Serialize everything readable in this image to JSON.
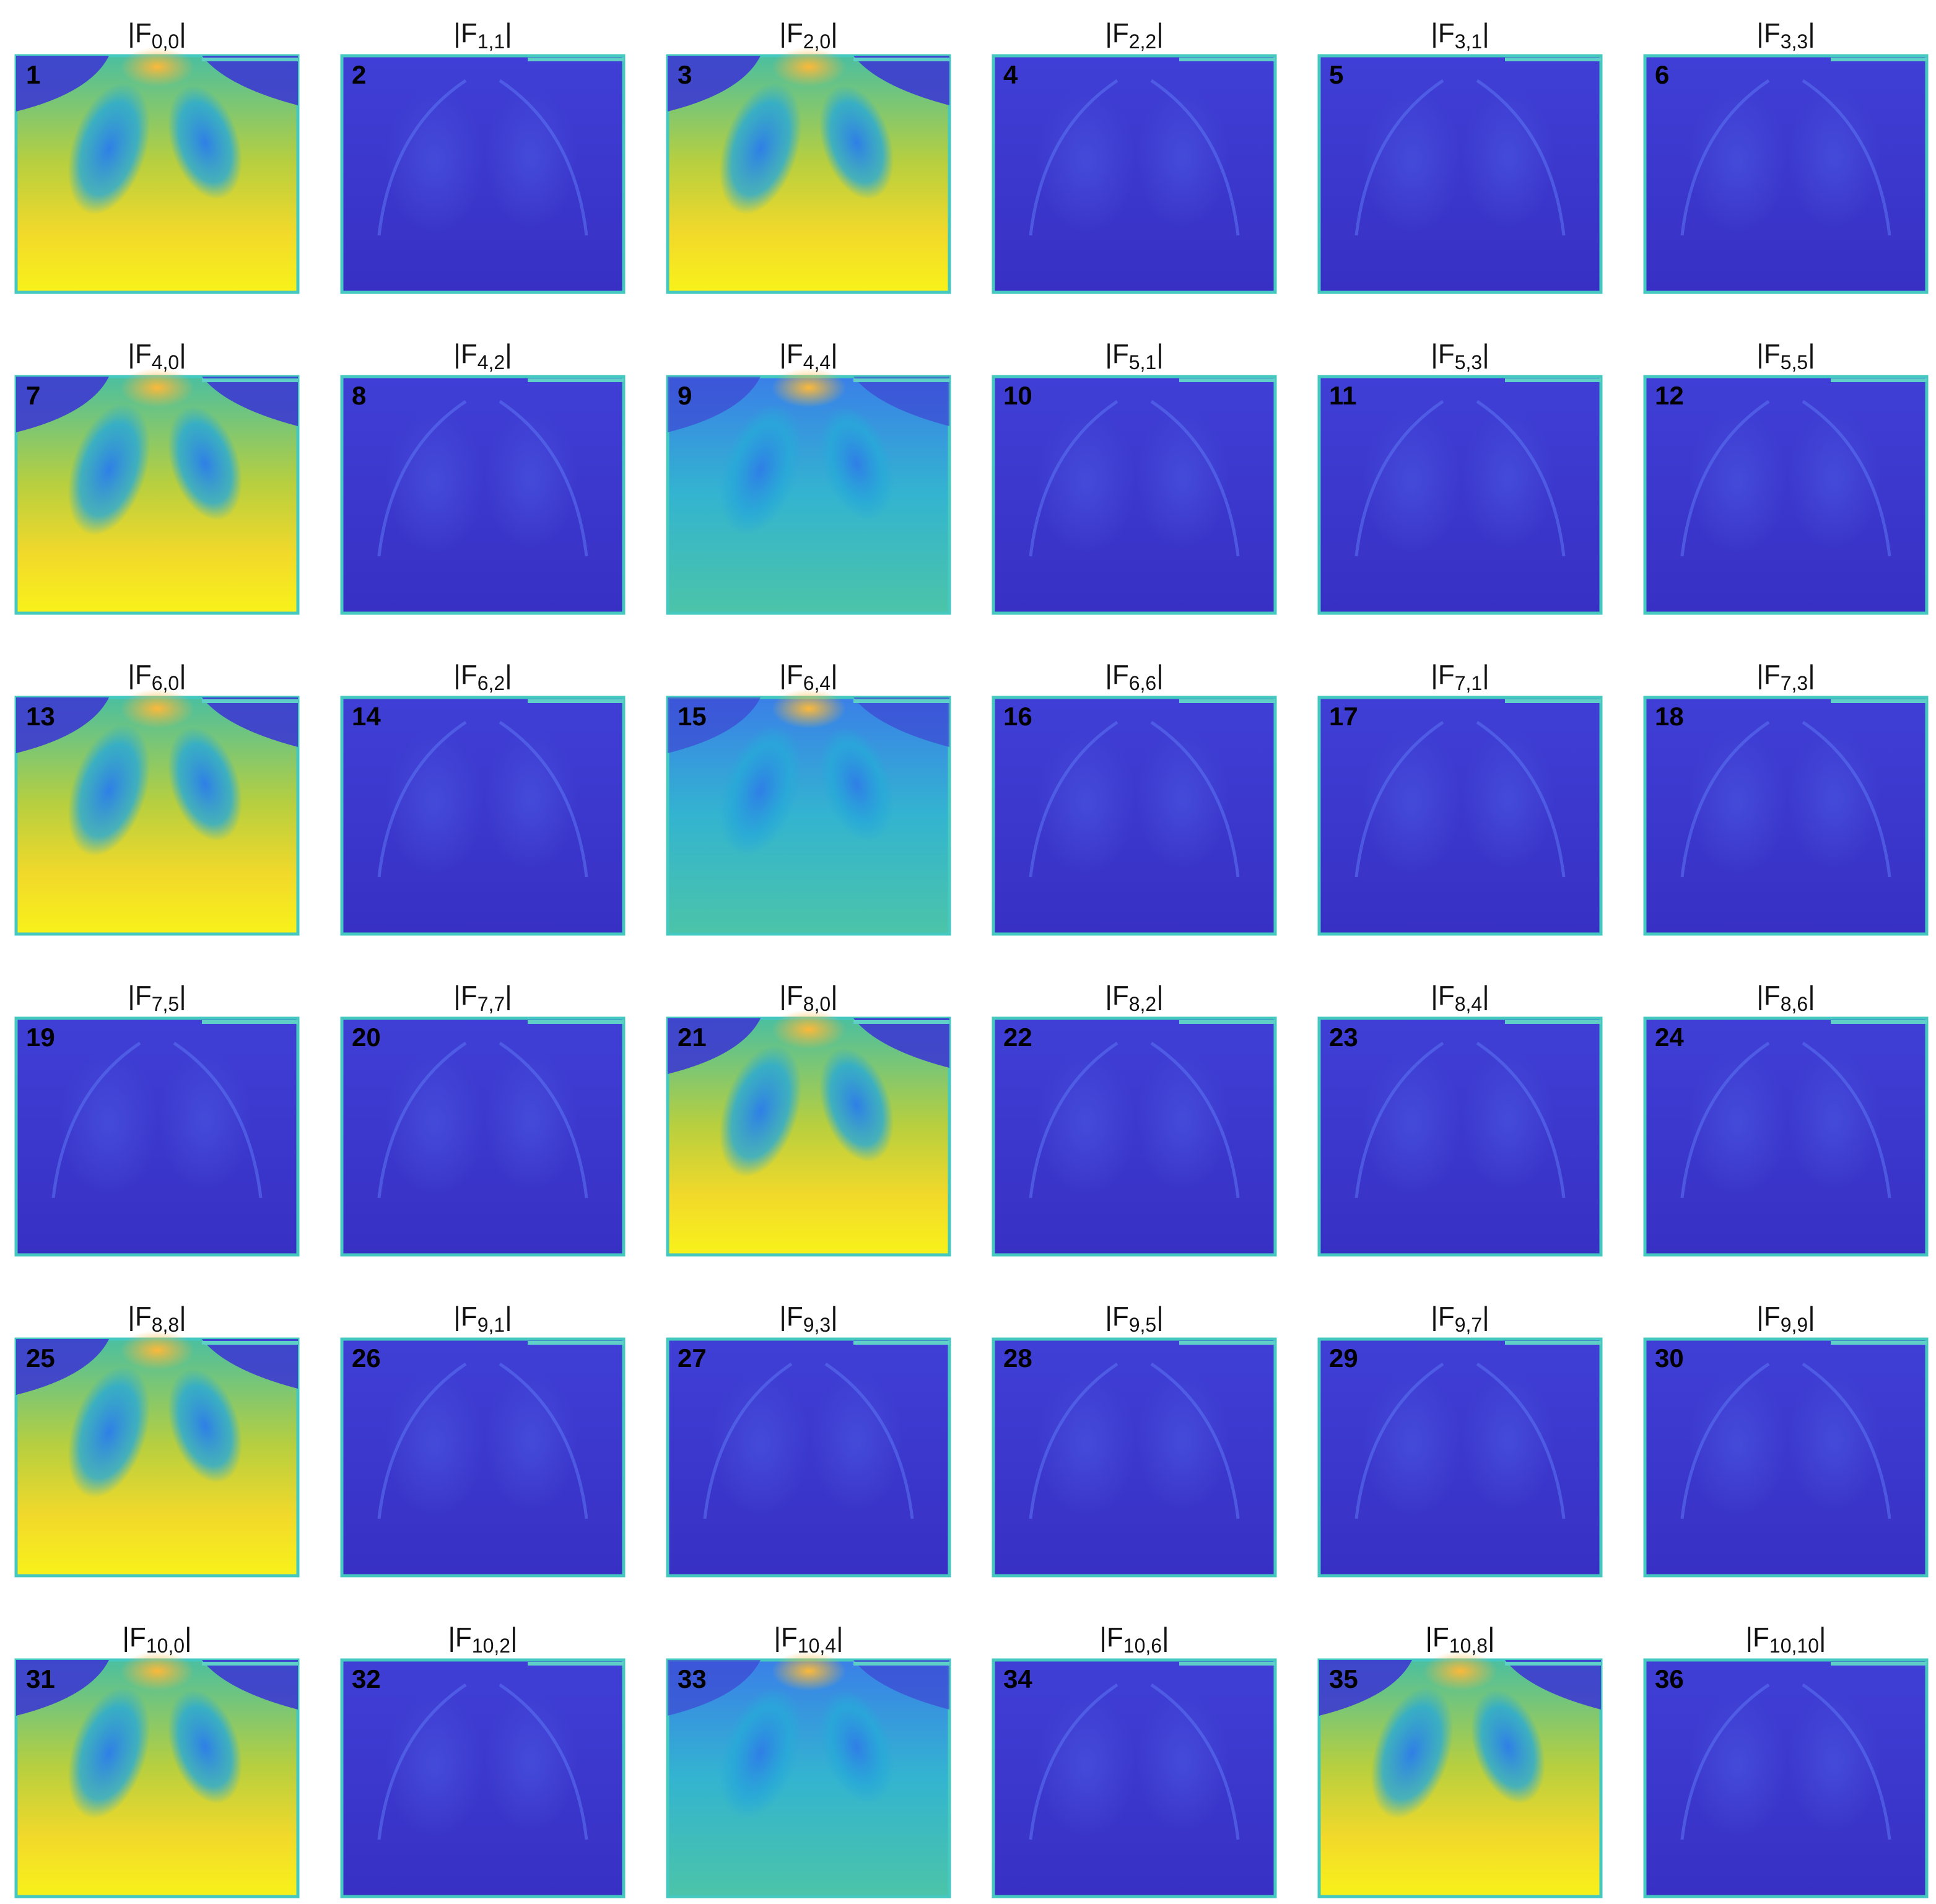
{
  "delimiter": "|",
  "panels": [
    {
      "symbol": "F",
      "subscript": "0,0",
      "number": "1"
    },
    {
      "symbol": "F",
      "subscript": "1,1",
      "number": "2"
    },
    {
      "symbol": "F",
      "subscript": "2,0",
      "number": "3"
    },
    {
      "symbol": "F",
      "subscript": "2,2",
      "number": "4"
    },
    {
      "symbol": "F",
      "subscript": "3,1",
      "number": "5"
    },
    {
      "symbol": "F",
      "subscript": "3,3",
      "number": "6"
    },
    {
      "symbol": "F",
      "subscript": "4,0",
      "number": "7"
    },
    {
      "symbol": "F",
      "subscript": "4,2",
      "number": "8"
    },
    {
      "symbol": "F",
      "subscript": "4,4",
      "number": "9"
    },
    {
      "symbol": "F",
      "subscript": "5,1",
      "number": "10"
    },
    {
      "symbol": "F",
      "subscript": "5,3",
      "number": "11"
    },
    {
      "symbol": "F",
      "subscript": "5,5",
      "number": "12"
    },
    {
      "symbol": "F",
      "subscript": "6,0",
      "number": "13"
    },
    {
      "symbol": "F",
      "subscript": "6,2",
      "number": "14"
    },
    {
      "symbol": "F",
      "subscript": "6,4",
      "number": "15"
    },
    {
      "symbol": "F",
      "subscript": "6,6",
      "number": "16"
    },
    {
      "symbol": "F",
      "subscript": "7,1",
      "number": "17"
    },
    {
      "symbol": "F",
      "subscript": "7,3",
      "number": "18"
    },
    {
      "symbol": "F",
      "subscript": "7,5",
      "number": "19"
    },
    {
      "symbol": "F",
      "subscript": "7,7",
      "number": "20"
    },
    {
      "symbol": "F",
      "subscript": "8,0",
      "number": "21"
    },
    {
      "symbol": "F",
      "subscript": "8,2",
      "number": "22"
    },
    {
      "symbol": "F",
      "subscript": "8,4",
      "number": "23"
    },
    {
      "symbol": "F",
      "subscript": "8,6",
      "number": "24"
    },
    {
      "symbol": "F",
      "subscript": "8,8",
      "number": "25"
    },
    {
      "symbol": "F",
      "subscript": "9,1",
      "number": "26"
    },
    {
      "symbol": "F",
      "subscript": "9,3",
      "number": "27"
    },
    {
      "symbol": "F",
      "subscript": "9,5",
      "number": "28"
    },
    {
      "symbol": "F",
      "subscript": "9,7",
      "number": "29"
    },
    {
      "symbol": "F",
      "subscript": "9,9",
      "number": "30"
    },
    {
      "symbol": "F",
      "subscript": "10,0",
      "number": "31"
    },
    {
      "symbol": "F",
      "subscript": "10,2",
      "number": "32"
    },
    {
      "symbol": "F",
      "subscript": "10,4",
      "number": "33"
    },
    {
      "symbol": "F",
      "subscript": "10,6",
      "number": "34"
    },
    {
      "symbol": "F",
      "subscript": "10,8",
      "number": "35"
    },
    {
      "symbol": "F",
      "subscript": "10,10",
      "number": "36"
    }
  ]
}
